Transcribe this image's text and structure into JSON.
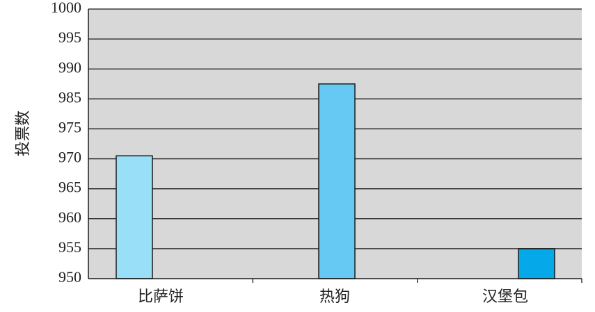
{
  "chart_data": {
    "type": "bar",
    "title": "",
    "xlabel": "",
    "ylabel": "投票数",
    "categories": [
      "比萨饼",
      "热狗",
      "汉堡包"
    ],
    "values": [
      970.5,
      987.5,
      955
    ],
    "y_ticks": [
      "950",
      "955",
      "960",
      "965",
      "970",
      "975",
      "985",
      "990",
      "995",
      "1000"
    ],
    "ylim": [
      950,
      1000
    ],
    "grid": true,
    "legend": "none",
    "colors": {
      "plot_background": "#d8d8d8",
      "grid": "#1a1a1a",
      "bars": [
        "#99dff8",
        "#66c9f3",
        "#05a8e8"
      ],
      "bar_stroke": "#1a1a1a"
    }
  }
}
